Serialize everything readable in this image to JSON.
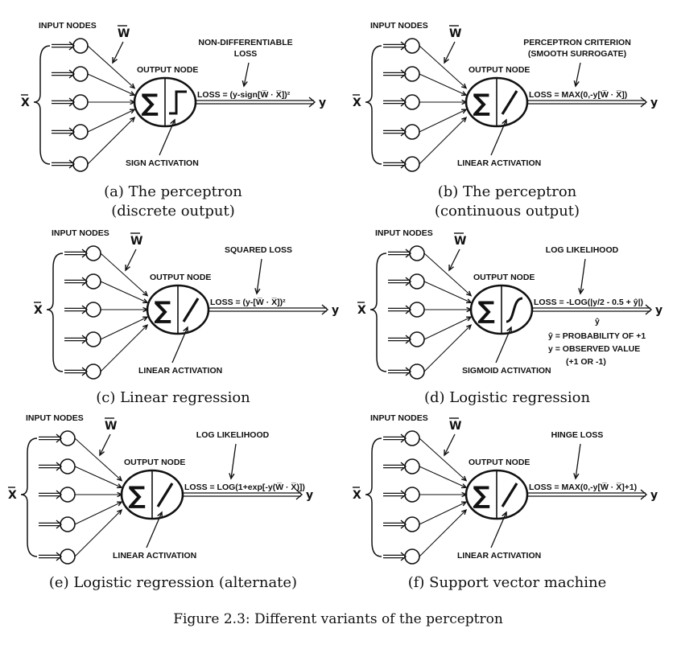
{
  "figure_caption": "Figure 2.3: Different variants of the perceptron",
  "panels": [
    {
      "input_label": "INPUT NODES",
      "weight_label": "W",
      "x_label": "X",
      "output_label": "OUTPUT NODE",
      "activation": "step",
      "activation_label": "SIGN ACTIVATION",
      "annotation_lines": [
        "NON-DIFFERENTIABLE",
        "LOSS"
      ],
      "loss": "LOSS = (y-sign[W̅ · X̅])²",
      "y_label": "y",
      "notes": [],
      "caption_lines": [
        "(a) The perceptron",
        "(discrete output)"
      ]
    },
    {
      "input_label": "INPUT NODES",
      "weight_label": "W",
      "x_label": "X",
      "output_label": "OUTPUT NODE",
      "activation": "linear",
      "activation_label": "LINEAR ACTIVATION",
      "annotation_lines": [
        "PERCEPTRON CRITERION",
        "(SMOOTH SURROGATE)"
      ],
      "loss": "LOSS = MAX(0,-y[W̅ · X̅])",
      "y_label": "y",
      "notes": [],
      "caption_lines": [
        "(b) The perceptron",
        "(continuous output)"
      ]
    },
    {
      "input_label": "INPUT NODES",
      "weight_label": "W",
      "x_label": "X",
      "output_label": "OUTPUT NODE",
      "activation": "linear",
      "activation_label": "LINEAR ACTIVATION",
      "annotation_lines": [
        "SQUARED LOSS"
      ],
      "loss": "LOSS = (y-[W̅ · X̅])²",
      "y_label": "y",
      "notes": [],
      "caption_lines": [
        "(c) Linear regression"
      ]
    },
    {
      "input_label": "INPUT NODES",
      "weight_label": "W",
      "x_label": "X",
      "output_label": "OUTPUT NODE",
      "activation": "sigmoid",
      "activation_label": "SIGMOID ACTIVATION",
      "annotation_lines": [
        "LOG LIKELIHOOD"
      ],
      "loss": "LOSS = -LOG(|y/2 - 0.5 + ŷ|)",
      "y_label": "y",
      "notes": [
        "ŷ",
        "ŷ = PROBABILITY OF +1",
        "y = OBSERVED VALUE",
        "(+1 OR -1)"
      ],
      "caption_lines": [
        "(d) Logistic regression"
      ]
    },
    {
      "input_label": "INPUT NODES",
      "weight_label": "W",
      "x_label": "X",
      "output_label": "OUTPUT NODE",
      "activation": "linear",
      "activation_label": "LINEAR ACTIVATION",
      "annotation_lines": [
        "LOG LIKELIHOOD"
      ],
      "loss": "LOSS = LOG(1+exp[-y(W̅ · X̅)])",
      "y_label": "y",
      "notes": [],
      "caption_lines": [
        "(e) Logistic regression (alternate)"
      ]
    },
    {
      "input_label": "INPUT NODES",
      "weight_label": "W",
      "x_label": "X",
      "output_label": "OUTPUT NODE",
      "activation": "linear",
      "activation_label": "LINEAR ACTIVATION",
      "annotation_lines": [
        "HINGE LOSS"
      ],
      "loss": "LOSS = MAX(0,-y[W̅ · X̅]+1)",
      "y_label": "y",
      "notes": [],
      "caption_lines": [
        "(f) Support vector machine"
      ]
    }
  ]
}
